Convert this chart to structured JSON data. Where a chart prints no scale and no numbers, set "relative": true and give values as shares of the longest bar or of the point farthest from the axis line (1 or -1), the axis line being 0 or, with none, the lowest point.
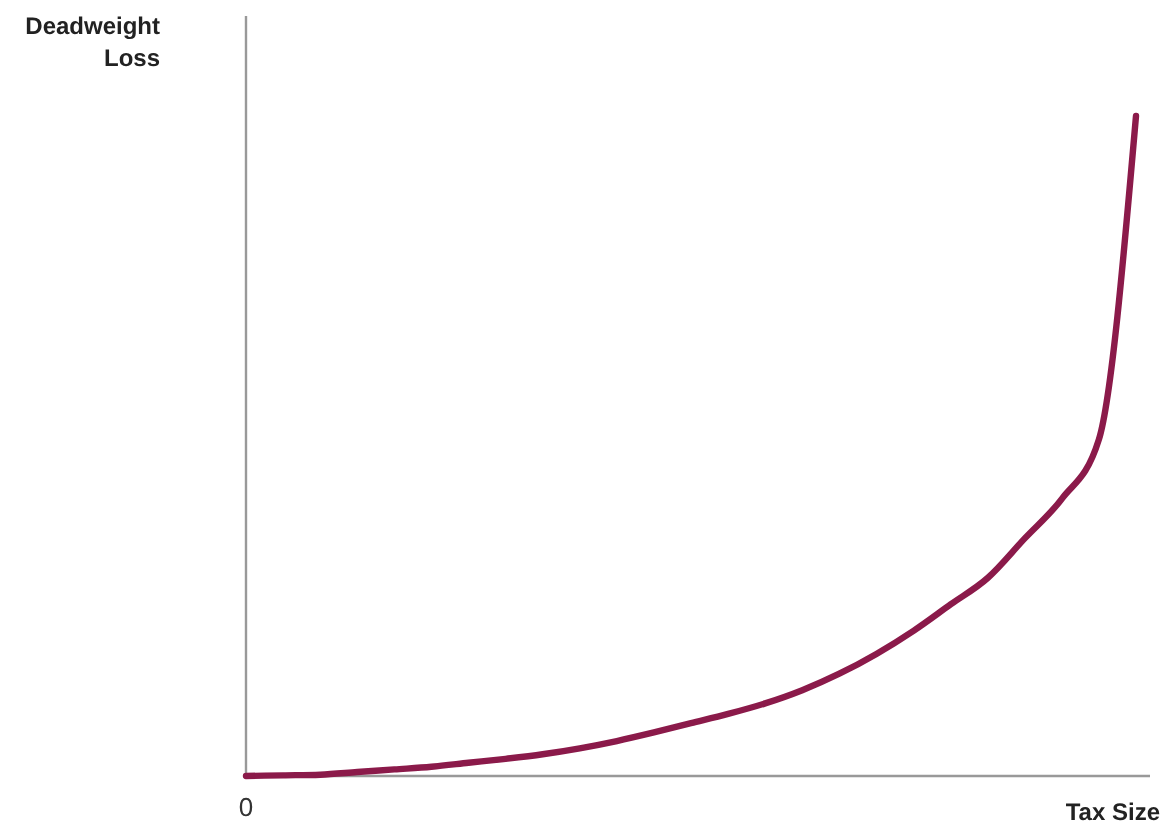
{
  "chart_data": {
    "type": "line",
    "relative": true,
    "xlabel": "Tax Size",
    "ylabel": "Deadweight Loss",
    "annotations": [
      "0"
    ],
    "categories": [
      null,
      null,
      null,
      null,
      null,
      null,
      null,
      null,
      null,
      null,
      null,
      null,
      null,
      null,
      null,
      null,
      null,
      null,
      null,
      null,
      null,
      null,
      null,
      null,
      null
    ],
    "series": [
      {
        "color": "#8b1a4a",
        "values": [
          0,
          0.001,
          0.002,
          0.006,
          0.01,
          0.014,
          0.02,
          0.026,
          0.033,
          0.042,
          0.053,
          0.066,
          0.08,
          0.094,
          0.11,
          0.13,
          0.155,
          0.185,
          0.22,
          0.26,
          0.3,
          0.36,
          0.42,
          0.51,
          1
        ]
      }
    ]
  }
}
